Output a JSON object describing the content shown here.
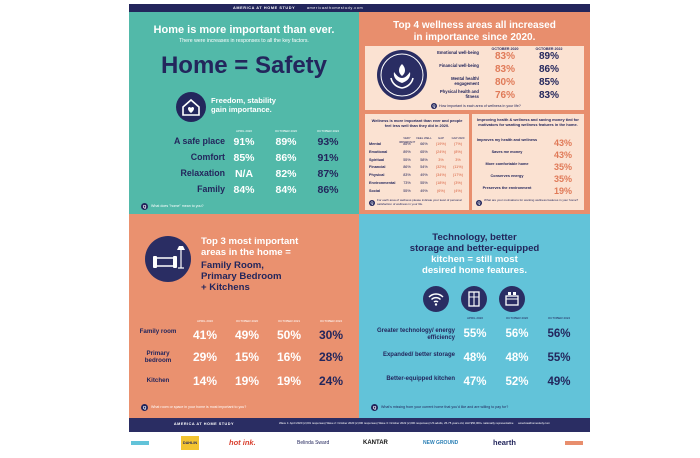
{
  "header": {
    "title": "AMERICA AT HOME STUDY",
    "site": "americaathomestudy.com"
  },
  "safety": {
    "headline": "Home is more important than ever.",
    "subhead": "There were increases in responses to all the key factors.",
    "big_title": "Home = Safety",
    "freedom_line1": "Freedom, stability",
    "freedom_line2": "gain importance.",
    "col_headers": [
      "APRIL 2020",
      "OCTOBER 2020",
      "OCTOBER 2022"
    ],
    "rows": [
      {
        "label": "A safe place",
        "values": [
          "91%",
          "89%",
          "93%"
        ]
      },
      {
        "label": "Comfort",
        "values": [
          "85%",
          "86%",
          "91%"
        ]
      },
      {
        "label": "Relaxation",
        "values": [
          "N/A",
          "82%",
          "87%"
        ]
      },
      {
        "label": "Family",
        "values": [
          "84%",
          "84%",
          "86%"
        ]
      }
    ],
    "question": "What does \"home\" mean to you?"
  },
  "wellness": {
    "title_line1": "Top 4 wellness areas all increased",
    "title_line2": "in importance since 2020.",
    "col_headers": [
      "OCTOBER 2020",
      "OCTOBER 2022"
    ],
    "rows": [
      {
        "label": "Emotional well-being",
        "v1": "83%",
        "v2": "89%"
      },
      {
        "label": "Financial well-being",
        "v1": "83%",
        "v2": "86%"
      },
      {
        "label": "Mental health/ engagement",
        "v1": "80%",
        "v2": "85%"
      },
      {
        "label": "Physical health and fitness",
        "v1": "76%",
        "v2": "83%"
      }
    ],
    "question_top": "How important is each area of wellness in your life?",
    "left_title": "Wellness is more important than ever and people feel less well than they did in 2020.",
    "left_headers": [
      "VERY IMPORTANT",
      "FEEL WELL",
      "GAP",
      "GAP 2020"
    ],
    "left_rows": [
      {
        "label": "Mental",
        "v": [
          "85%",
          "66%",
          "(19%)",
          "(7%)"
        ]
      },
      {
        "label": "Emotional",
        "v": [
          "89%",
          "65%",
          "(24%)",
          "(8%)"
        ]
      },
      {
        "label": "Spiritual",
        "v": [
          "55%",
          "58%",
          "3%",
          "3%"
        ]
      },
      {
        "label": "Financial",
        "v": [
          "86%",
          "54%",
          "(32%)",
          "(11%)"
        ]
      },
      {
        "label": "Physical",
        "v": [
          "83%",
          "49%",
          "(34%)",
          "(17%)"
        ]
      },
      {
        "label": "Environmental",
        "v": [
          "73%",
          "55%",
          "(18%)",
          "(3%)"
        ]
      },
      {
        "label": "Social",
        "v": [
          "55%",
          "49%",
          "(6%)",
          "(4%)"
        ]
      }
    ],
    "left_question": "For each area of wellness please indicate your level of personal satisfaction of wellness in your life.",
    "right_title": "Improving health & wellness and saving money tied for motivators for wanting wellness features in the home.",
    "right_rows": [
      {
        "label": "Improves my health and wellness",
        "v": "43%"
      },
      {
        "label": "Saves me money",
        "v": "43%"
      },
      {
        "label": "More comfortable home",
        "v": "35%"
      },
      {
        "label": "Conserves energy",
        "v": "35%"
      },
      {
        "label": "Preserves the environment",
        "v": "19%"
      }
    ],
    "right_question": "What are your motivations for wanting wellness features in your home?"
  },
  "rooms": {
    "title_line1": "Top 3 most important",
    "title_line2": "areas in the home =",
    "title_line3": "Family Room,",
    "title_line4": "Primary Bedroom",
    "title_line5": "+ Kitchens",
    "col_headers": [
      "APRIL 2020",
      "OCTOBER 2020",
      "OCTOBER 2021",
      "OCTOBER 2022"
    ],
    "rows": [
      {
        "label": "Family room",
        "values": [
          "41%",
          "49%",
          "50%",
          "30%"
        ]
      },
      {
        "label": "Primary bedroom",
        "values": [
          "29%",
          "15%",
          "16%",
          "28%"
        ]
      },
      {
        "label": "Kitchen",
        "values": [
          "14%",
          "19%",
          "19%",
          "24%"
        ]
      }
    ],
    "question": "What room or space in your home is most important to you?"
  },
  "tech": {
    "title_line1": "Technology, better",
    "title_line2": "storage and better-equipped",
    "title_line3": "kitchen = still most",
    "title_line4": "desired home features.",
    "icons": [
      "wifi-icon",
      "storage-icon",
      "kitchen-icon"
    ],
    "col_headers": [
      "APRIL 2020",
      "OCTOBER 2020",
      "OCTOBER 2022"
    ],
    "rows": [
      {
        "label": "Greater technology/ energy efficiency",
        "values": [
          "55%",
          "56%",
          "56%"
        ]
      },
      {
        "label": "Expanded/ better storage",
        "values": [
          "48%",
          "48%",
          "55%"
        ]
      },
      {
        "label": "Better-equipped kitchen",
        "values": [
          "47%",
          "52%",
          "49%"
        ]
      }
    ],
    "question": "What's missing from your current home that you'd like and are willing to pay for?"
  },
  "footer": {
    "title": "AMERICA AT HOME STUDY",
    "note": "Wave 1: April 2020 (2,001 responses) Wave 2: October 2020 (2,000 responses) Wave 3: October 2022 (2,000 responses) US adults, 25-75 years old, HHI $50,000+ nationally representative",
    "site": "americaathomestudy.com"
  },
  "logos": [
    "DAHLIN",
    "hot ink.",
    "Belinda Sward",
    "KANTAR",
    "NEW GROUND",
    "hearth"
  ]
}
